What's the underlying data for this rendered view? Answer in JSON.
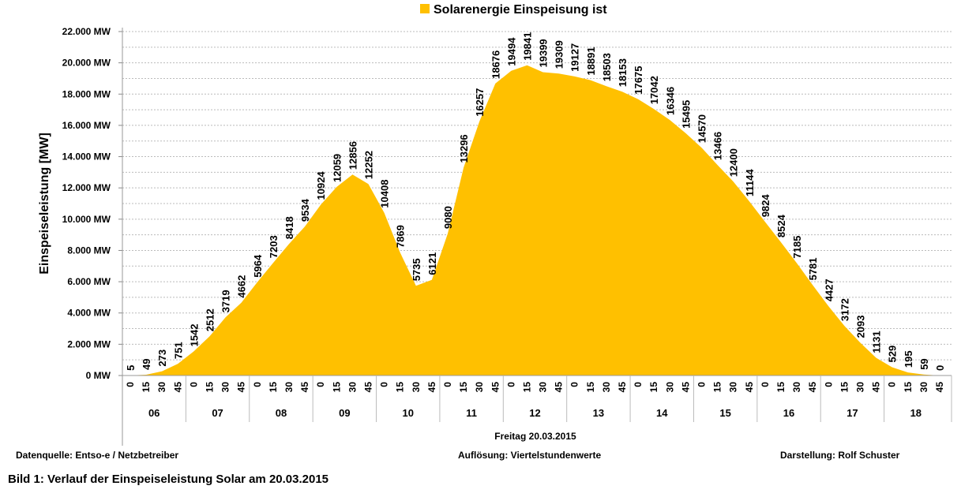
{
  "chart_data": {
    "type": "area",
    "legend": {
      "label": "Solarenergie Einspeisung ist",
      "placement": "top"
    },
    "ylabel": "Einspeiseleistung  [MW]",
    "ylim": [
      0,
      22000
    ],
    "ytick_step": 2000,
    "ytick_unit": "MW",
    "ytick_labels": [
      "0 MW",
      "2.000 MW",
      "4.000 MW",
      "6.000 MW",
      "8.000 MW",
      "10.000 MW",
      "12.000 MW",
      "14.000 MW",
      "16.000 MW",
      "18.000 MW",
      "20.000 MW",
      "22.000 MW"
    ],
    "grid": true,
    "minor_grid_step": 1000,
    "color": "#FFC000",
    "hours": [
      "06",
      "07",
      "08",
      "09",
      "10",
      "11",
      "12",
      "13",
      "14",
      "15",
      "16",
      "17",
      "18"
    ],
    "minutes": [
      "0",
      "15",
      "30",
      "45"
    ],
    "xlabel": "Freitag  20.03.2015",
    "values": [
      5,
      49,
      273,
      751,
      1542,
      2512,
      3719,
      4662,
      5964,
      7203,
      8418,
      9534,
      10924,
      12059,
      12856,
      12252,
      10408,
      7869,
      5735,
      6121,
      9080,
      13296,
      16257,
      18676,
      19494,
      19841,
      19399,
      19309,
      19127,
      18891,
      18503,
      18153,
      17675,
      17042,
      16346,
      15495,
      14570,
      13466,
      12400,
      11144,
      9824,
      8524,
      7185,
      5781,
      4427,
      3172,
      2093,
      1131,
      529,
      195,
      59,
      0
    ]
  },
  "footer": {
    "source": "Datenquelle:  Entso-e  / Netzbetreiber",
    "resolution": "Auflösung: Viertelstundenwerte",
    "author": "Darstellung: Rolf Schuster"
  },
  "caption": "Bild 1: Verlauf der Einspeiseleistung Solar am 20.03.2015"
}
